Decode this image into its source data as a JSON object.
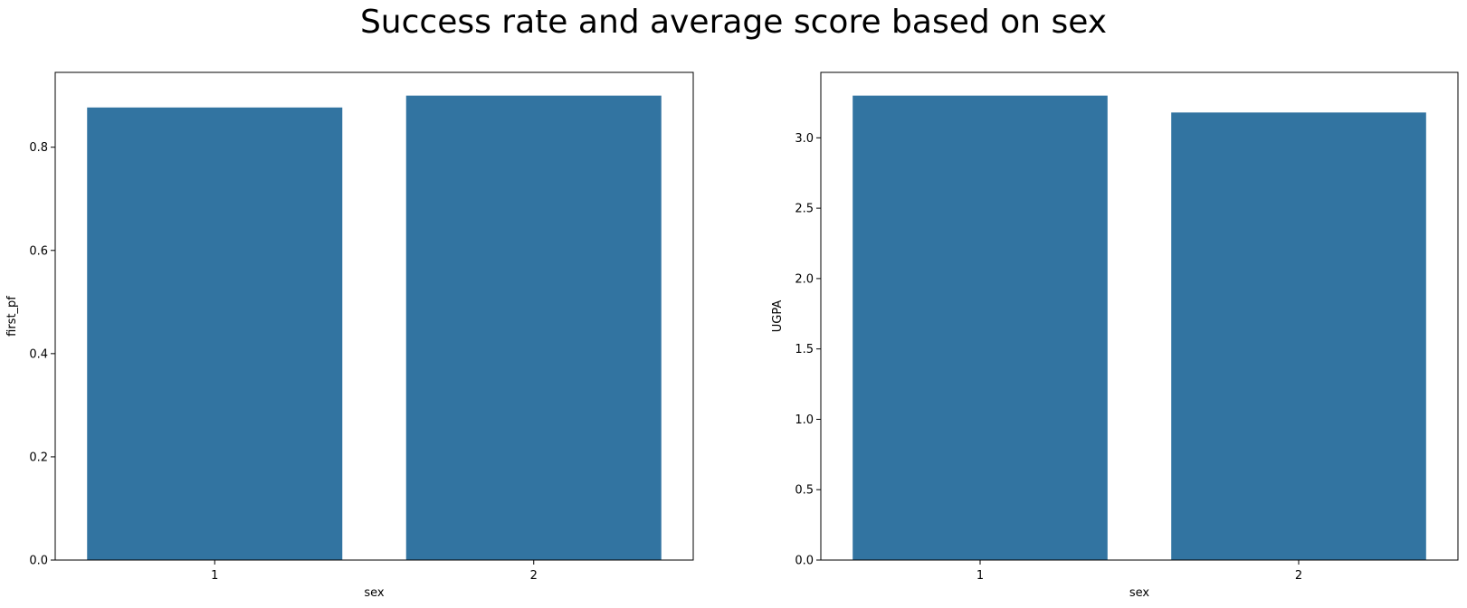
{
  "figure": {
    "suptitle": "Success rate and average score based on sex"
  },
  "colors": {
    "bar": "#3274a1",
    "axes": "#000000",
    "background": "#ffffff"
  },
  "chart_data": [
    {
      "type": "bar",
      "title": "",
      "xlabel": "sex",
      "ylabel": "first_pf",
      "categories": [
        "1",
        "2"
      ],
      "values": [
        0.877,
        0.9
      ],
      "ylim": [
        0,
        0.945
      ],
      "yticks": [
        0.0,
        0.2,
        0.4,
        0.6,
        0.8
      ],
      "ytick_labels": [
        "0.0",
        "0.2",
        "0.4",
        "0.6",
        "0.8"
      ],
      "grid": false,
      "legend": "none"
    },
    {
      "type": "bar",
      "title": "",
      "xlabel": "sex",
      "ylabel": "UGPA",
      "categories": [
        "1",
        "2"
      ],
      "values": [
        3.3,
        3.18
      ],
      "ylim": [
        0,
        3.465
      ],
      "yticks": [
        0.0,
        0.5,
        1.0,
        1.5,
        2.0,
        2.5,
        3.0
      ],
      "ytick_labels": [
        "0.0",
        "0.5",
        "1.0",
        "1.5",
        "2.0",
        "2.5",
        "3.0"
      ],
      "grid": false,
      "legend": "none"
    }
  ]
}
